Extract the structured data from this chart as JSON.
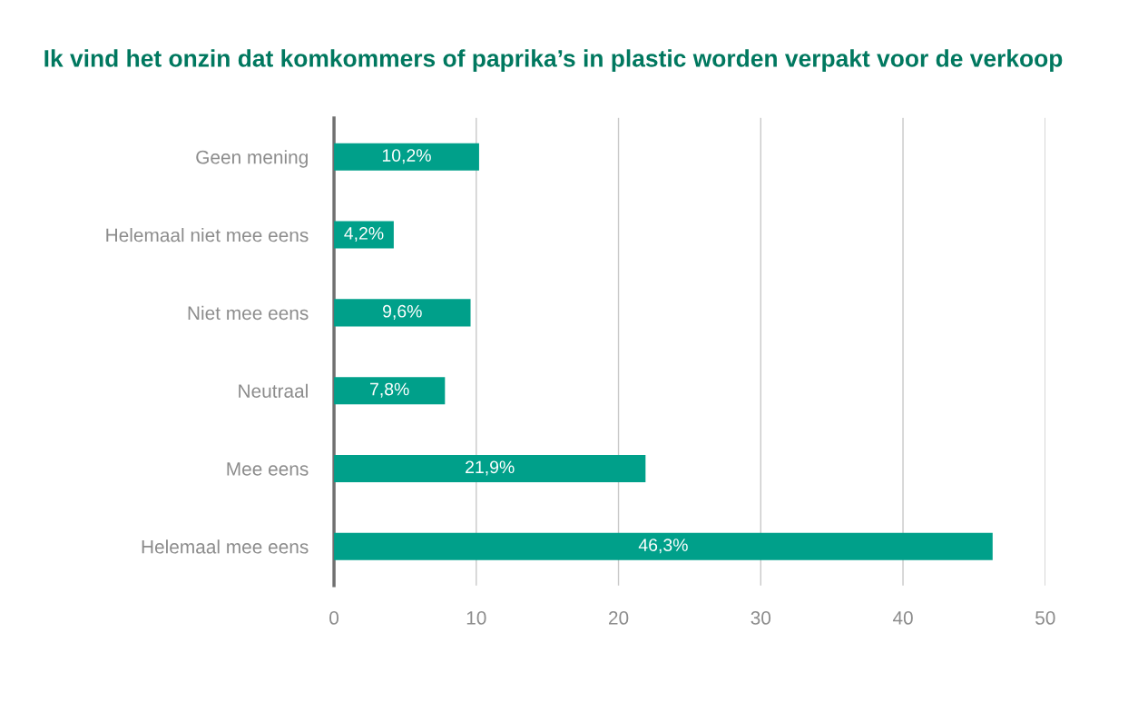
{
  "chart_data": {
    "type": "bar",
    "orientation": "horizontal",
    "title": "Ik vind het onzin dat komkommers of paprika’s in plastic worden verpakt voor de verkoop",
    "categories": [
      "Geen mening",
      "Helemaal niet mee eens",
      "Niet mee eens",
      "Neutraal",
      "Mee eens",
      "Helemaal mee eens"
    ],
    "values": [
      10.2,
      4.2,
      9.6,
      7.8,
      21.9,
      46.3
    ],
    "value_labels": [
      "10,2%",
      "4,2%",
      "9,6%",
      "7,8%",
      "21,9%",
      "46,3%"
    ],
    "color": "#00a08a",
    "xlim": [
      0,
      50
    ],
    "xticks": [
      0,
      10,
      20,
      30,
      40,
      50
    ],
    "grid": "x",
    "legend": false
  }
}
